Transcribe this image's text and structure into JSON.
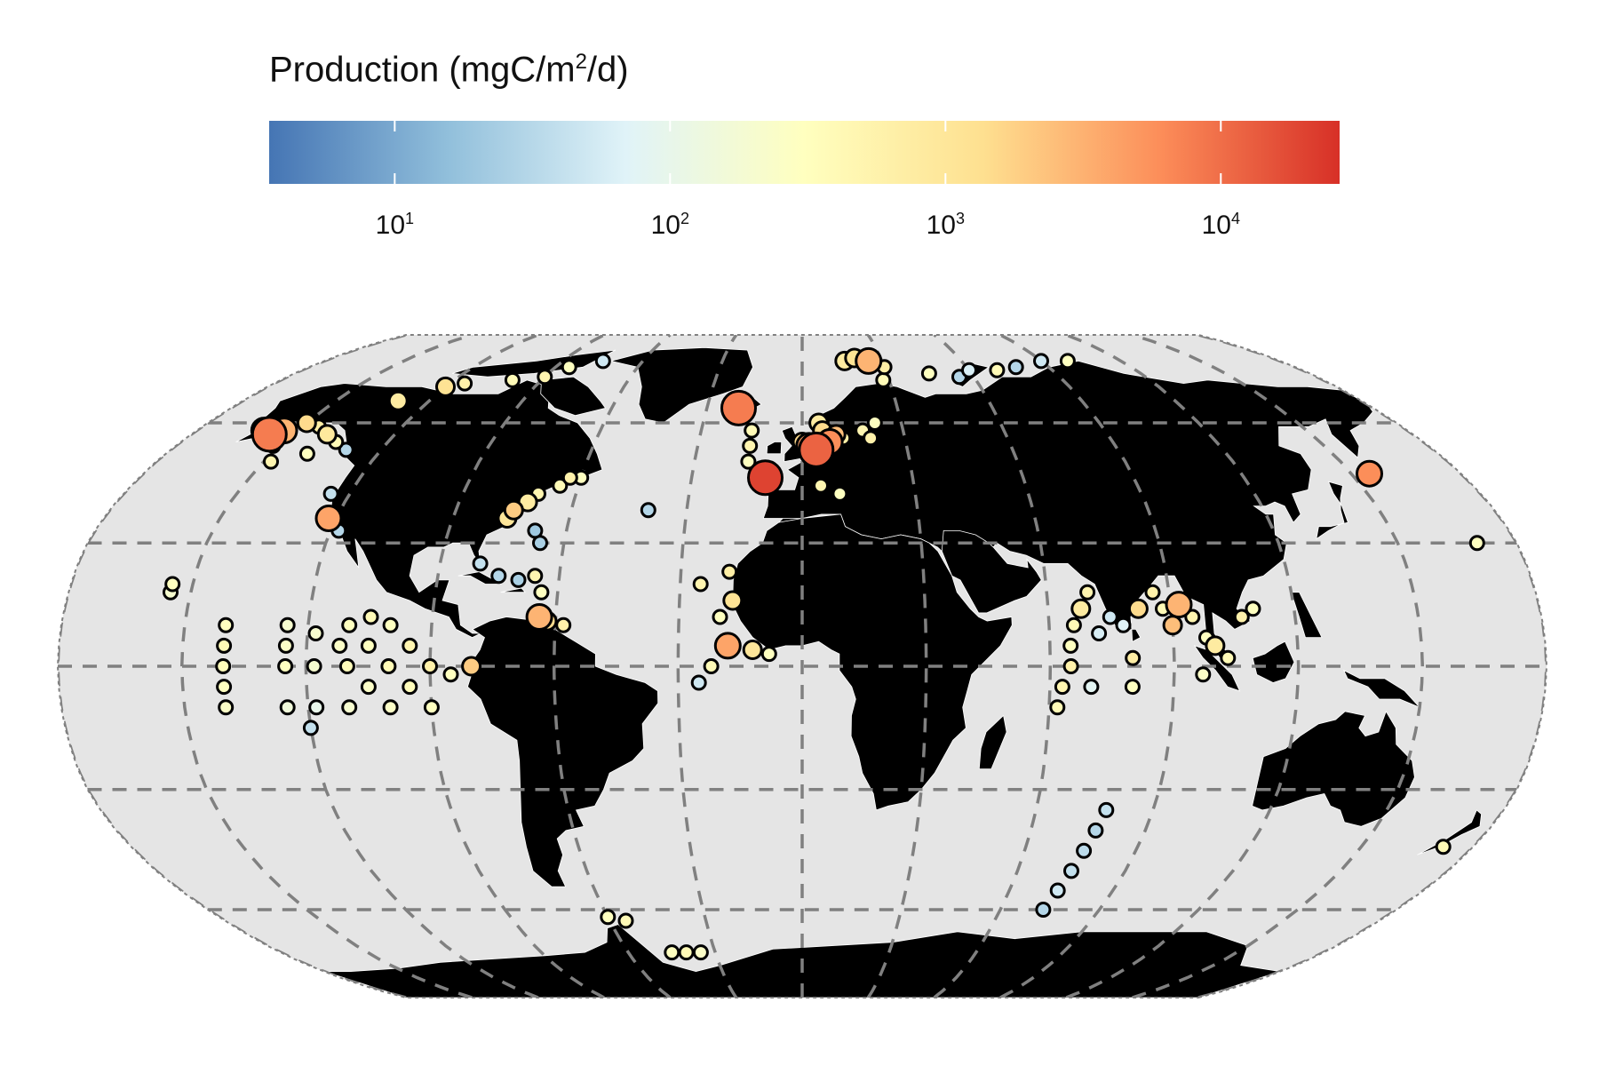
{
  "legend": {
    "title_prefix": "Production (mgC/m",
    "title_sup": "2",
    "title_suffix": "/d)",
    "scale": "log",
    "range": [
      3.5,
      27000
    ],
    "colors": [
      "#4575b4",
      "#91bfdb",
      "#e0f3f8",
      "#ffffbf",
      "#fee090",
      "#fc8d59",
      "#d73027"
    ],
    "ticks": [
      {
        "base": "10",
        "exp": "1",
        "value": 10
      },
      {
        "base": "10",
        "exp": "2",
        "value": 100
      },
      {
        "base": "10",
        "exp": "3",
        "value": 1000
      },
      {
        "base": "10",
        "exp": "4",
        "value": 10000
      }
    ]
  },
  "map": {
    "projection": "robinson",
    "ocean_color": "#e5e5e5",
    "land_color": "#000000",
    "graticule_color": "#808080",
    "graticule_style": "dashed",
    "graticule_step_deg": 30
  },
  "stations": [
    {
      "lon": -160,
      "lat": 58,
      "v": 5000
    },
    {
      "lon": -157,
      "lat": 57,
      "v": 8000
    },
    {
      "lon": -154,
      "lat": 58,
      "v": 3000
    },
    {
      "lon": -150,
      "lat": 60,
      "v": 1500
    },
    {
      "lon": -145,
      "lat": 59,
      "v": 700
    },
    {
      "lon": -140,
      "lat": 57,
      "v": 900
    },
    {
      "lon": -135,
      "lat": 55,
      "v": 400
    },
    {
      "lon": -130,
      "lat": 53,
      "v": 30
    },
    {
      "lon": -152,
      "lat": 54,
      "v": 600
    },
    {
      "lon": -140,
      "lat": 52,
      "v": 300
    },
    {
      "lon": -148,
      "lat": 50,
      "v": 500
    },
    {
      "lon": -130,
      "lat": 66,
      "v": 800
    },
    {
      "lon": -120,
      "lat": 70,
      "v": 1200
    },
    {
      "lon": -115,
      "lat": 71,
      "v": 600
    },
    {
      "lon": -100,
      "lat": 72,
      "v": 400
    },
    {
      "lon": -90,
      "lat": 73,
      "v": 500
    },
    {
      "lon": -85,
      "lat": 76,
      "v": 300
    },
    {
      "lon": -75,
      "lat": 78,
      "v": 50
    },
    {
      "lon": -125,
      "lat": 42,
      "v": 40
    },
    {
      "lon": -122,
      "lat": 36,
      "v": 4000
    },
    {
      "lon": -118,
      "lat": 33,
      "v": 30
    },
    {
      "lon": -70,
      "lat": 42,
      "v": 500
    },
    {
      "lon": -72,
      "lat": 40,
      "v": 800
    },
    {
      "lon": -75,
      "lat": 38,
      "v": 2000
    },
    {
      "lon": -76,
      "lat": 36,
      "v": 1000
    },
    {
      "lon": -65,
      "lat": 44,
      "v": 400
    },
    {
      "lon": -63,
      "lat": 46,
      "v": 600
    },
    {
      "lon": -60,
      "lat": 46,
      "v": 300
    },
    {
      "lon": -68,
      "lat": 33,
      "v": 20
    },
    {
      "lon": -66,
      "lat": 30,
      "v": 25
    },
    {
      "lon": -80,
      "lat": 25,
      "v": 40
    },
    {
      "lon": -75,
      "lat": 22,
      "v": 30
    },
    {
      "lon": -70,
      "lat": 21,
      "v": 25
    },
    {
      "lon": -66,
      "lat": 22,
      "v": 500
    },
    {
      "lon": -64,
      "lat": 18,
      "v": 300
    },
    {
      "lon": -64,
      "lat": 12,
      "v": 3000
    },
    {
      "lon": -62,
      "lat": 11,
      "v": 1500
    },
    {
      "lon": -58,
      "lat": 10,
      "v": 600
    },
    {
      "lon": -80,
      "lat": 0,
      "v": 2000
    },
    {
      "lon": -85,
      "lat": -2,
      "v": 300
    },
    {
      "lon": -155,
      "lat": 20,
      "v": 300
    },
    {
      "lon": -155,
      "lat": 18,
      "v": 200
    },
    {
      "lon": -140,
      "lat": 10,
      "v": 300
    },
    {
      "lon": -140,
      "lat": 5,
      "v": 400
    },
    {
      "lon": -140,
      "lat": 0,
      "v": 350
    },
    {
      "lon": -140,
      "lat": -5,
      "v": 300
    },
    {
      "lon": -140,
      "lat": -10,
      "v": 250
    },
    {
      "lon": -125,
      "lat": 10,
      "v": 200
    },
    {
      "lon": -125,
      "lat": 5,
      "v": 250
    },
    {
      "lon": -125,
      "lat": 0,
      "v": 300
    },
    {
      "lon": -125,
      "lat": -10,
      "v": 150
    },
    {
      "lon": -120,
      "lat": -15,
      "v": 40
    },
    {
      "lon": -118,
      "lat": 8,
      "v": 200
    },
    {
      "lon": -118,
      "lat": 0,
      "v": 200
    },
    {
      "lon": -118,
      "lat": -10,
      "v": 100
    },
    {
      "lon": -112,
      "lat": 5,
      "v": 250
    },
    {
      "lon": -110,
      "lat": 10,
      "v": 300
    },
    {
      "lon": -110,
      "lat": 0,
      "v": 350
    },
    {
      "lon": -110,
      "lat": -10,
      "v": 200
    },
    {
      "lon": -105,
      "lat": 12,
      "v": 400
    },
    {
      "lon": -105,
      "lat": 5,
      "v": 300
    },
    {
      "lon": -105,
      "lat": -5,
      "v": 250
    },
    {
      "lon": -100,
      "lat": 10,
      "v": 300
    },
    {
      "lon": -100,
      "lat": 0,
      "v": 400
    },
    {
      "lon": -100,
      "lat": -10,
      "v": 250
    },
    {
      "lon": -95,
      "lat": 5,
      "v": 500
    },
    {
      "lon": -95,
      "lat": -5,
      "v": 350
    },
    {
      "lon": -90,
      "lat": 0,
      "v": 600
    },
    {
      "lon": -90,
      "lat": -10,
      "v": 300
    },
    {
      "lon": -20,
      "lat": 64,
      "v": 8000
    },
    {
      "lon": -15,
      "lat": 58,
      "v": 400
    },
    {
      "lon": -15,
      "lat": 54,
      "v": 500
    },
    {
      "lon": -15,
      "lat": 50,
      "v": 300
    },
    {
      "lon": -10,
      "lat": 46,
      "v": 20000
    },
    {
      "lon": -10,
      "lat": 44,
      "v": 250
    },
    {
      "lon": 0,
      "lat": 55,
      "v": 1500
    },
    {
      "lon": 2,
      "lat": 54,
      "v": 4000
    },
    {
      "lon": 4,
      "lat": 53,
      "v": 12000
    },
    {
      "lon": 8,
      "lat": 55,
      "v": 6000
    },
    {
      "lon": 10,
      "lat": 57,
      "v": 2500
    },
    {
      "lon": 6,
      "lat": 58,
      "v": 1500
    },
    {
      "lon": 5,
      "lat": 60,
      "v": 800
    },
    {
      "lon": 12,
      "lat": 56,
      "v": 700
    },
    {
      "lon": 20,
      "lat": 56,
      "v": 600
    },
    {
      "lon": 18,
      "lat": 58,
      "v": 500
    },
    {
      "lon": 22,
      "lat": 60,
      "v": 300
    },
    {
      "lon": 5,
      "lat": 44,
      "v": 500
    },
    {
      "lon": 10,
      "lat": 42,
      "v": 300
    },
    {
      "lon": 16,
      "lat": 78,
      "v": 800
    },
    {
      "lon": 20,
      "lat": 79,
      "v": 1200
    },
    {
      "lon": 25,
      "lat": 78,
      "v": 3000
    },
    {
      "lon": 30,
      "lat": 76,
      "v": 700
    },
    {
      "lon": 28,
      "lat": 72,
      "v": 400
    },
    {
      "lon": 45,
      "lat": 74,
      "v": 300
    },
    {
      "lon": 55,
      "lat": 73,
      "v": 30
    },
    {
      "lon": 60,
      "lat": 75,
      "v": 60
    },
    {
      "lon": 70,
      "lat": 75,
      "v": 400
    },
    {
      "lon": 78,
      "lat": 76,
      "v": 30
    },
    {
      "lon": 90,
      "lat": 78,
      "v": 50
    },
    {
      "lon": 100,
      "lat": 78,
      "v": 300
    },
    {
      "lon": -40,
      "lat": 38,
      "v": 30
    },
    {
      "lon": -25,
      "lat": 20,
      "v": 500
    },
    {
      "lon": -18,
      "lat": 23,
      "v": 700
    },
    {
      "lon": -17,
      "lat": 16,
      "v": 1200
    },
    {
      "lon": -20,
      "lat": 12,
      "v": 300
    },
    {
      "lon": -18,
      "lat": 5,
      "v": 4000
    },
    {
      "lon": -12,
      "lat": 4,
      "v": 1000
    },
    {
      "lon": -8,
      "lat": 3,
      "v": 300
    },
    {
      "lon": -22,
      "lat": 0,
      "v": 400
    },
    {
      "lon": -25,
      "lat": -4,
      "v": 50
    },
    {
      "lon": 70,
      "lat": 18,
      "v": 500
    },
    {
      "lon": 68,
      "lat": 14,
      "v": 800
    },
    {
      "lon": 66,
      "lat": 10,
      "v": 400
    },
    {
      "lon": 65,
      "lat": 5,
      "v": 300
    },
    {
      "lon": 65,
      "lat": 0,
      "v": 600
    },
    {
      "lon": 70,
      "lat": -5,
      "v": 80
    },
    {
      "lon": 72,
      "lat": 8,
      "v": 60
    },
    {
      "lon": 75,
      "lat": 12,
      "v": 50
    },
    {
      "lon": 78,
      "lat": 10,
      "v": 70
    },
    {
      "lon": 82,
      "lat": 14,
      "v": 1500
    },
    {
      "lon": 86,
      "lat": 18,
      "v": 600
    },
    {
      "lon": 88,
      "lat": 14,
      "v": 400
    },
    {
      "lon": 90,
      "lat": 10,
      "v": 2500
    },
    {
      "lon": 92,
      "lat": 15,
      "v": 3000
    },
    {
      "lon": 95,
      "lat": 12,
      "v": 500
    },
    {
      "lon": 98,
      "lat": 7,
      "v": 300
    },
    {
      "lon": 100,
      "lat": 5,
      "v": 800
    },
    {
      "lon": 103,
      "lat": 2,
      "v": 400
    },
    {
      "lon": 97,
      "lat": -2,
      "v": 250
    },
    {
      "lon": 107,
      "lat": 12,
      "v": 600
    },
    {
      "lon": 110,
      "lat": 14,
      "v": 300
    },
    {
      "lon": 80,
      "lat": -5,
      "v": 300
    },
    {
      "lon": 80,
      "lat": 2,
      "v": 700
    },
    {
      "lon": 63,
      "lat": -5,
      "v": 500
    },
    {
      "lon": 62,
      "lat": -10,
      "v": 400
    },
    {
      "lon": 78,
      "lat": -35,
      "v": 40
    },
    {
      "lon": 77,
      "lat": -40,
      "v": 30
    },
    {
      "lon": 76,
      "lat": -45,
      "v": 35
    },
    {
      "lon": 75,
      "lat": -50,
      "v": 40
    },
    {
      "lon": 74,
      "lat": -55,
      "v": 50
    },
    {
      "lon": 73,
      "lat": -60,
      "v": 30
    },
    {
      "lon": 155,
      "lat": 47,
      "v": 6000
    },
    {
      "lon": 170,
      "lat": 30,
      "v": 300
    },
    {
      "lon": 172,
      "lat": -44,
      "v": 400
    },
    {
      "lon": -60,
      "lat": -62,
      "v": 300
    },
    {
      "lon": -55,
      "lat": -63,
      "v": 400
    },
    {
      "lon": -45,
      "lat": -72,
      "v": 300
    },
    {
      "lon": -40,
      "lat": -72,
      "v": 400
    },
    {
      "lon": -35,
      "lat": -72,
      "v": 250
    }
  ]
}
